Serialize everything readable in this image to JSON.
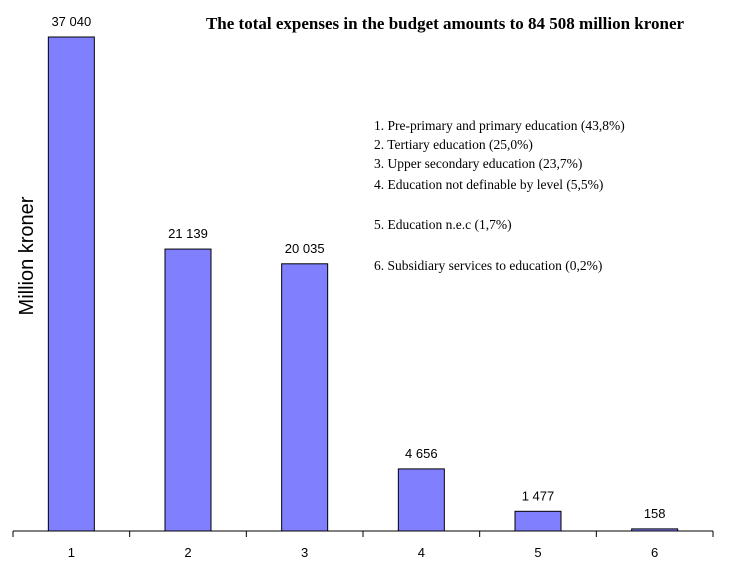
{
  "chart_data": {
    "type": "bar",
    "title": "The total expenses in the budget amounts to 84 508 million kroner",
    "xlabel": "",
    "ylabel": "Million kroner",
    "categories": [
      "1",
      "2",
      "3",
      "4",
      "5",
      "6"
    ],
    "values": [
      37040,
      21139,
      20035,
      4656,
      1477,
      158
    ],
    "value_labels": [
      "37 040",
      "21 139",
      "20 035",
      "4 656",
      "1 477",
      "158"
    ],
    "ylim": [
      0,
      37040
    ],
    "grid": false,
    "bar_color": "#8080ff",
    "legend_placement": "top-right",
    "annotations": [
      "1. Pre-primary and primary education (43,8%)",
      "2. Tertiary education (25,0%)",
      "3. Upper secondary education (23,7%)",
      "4. Education not definable by level (5,5%)",
      "5. Education n.e.c (1,7%)",
      "6. Subsidiary services to education (0,2%)"
    ]
  }
}
